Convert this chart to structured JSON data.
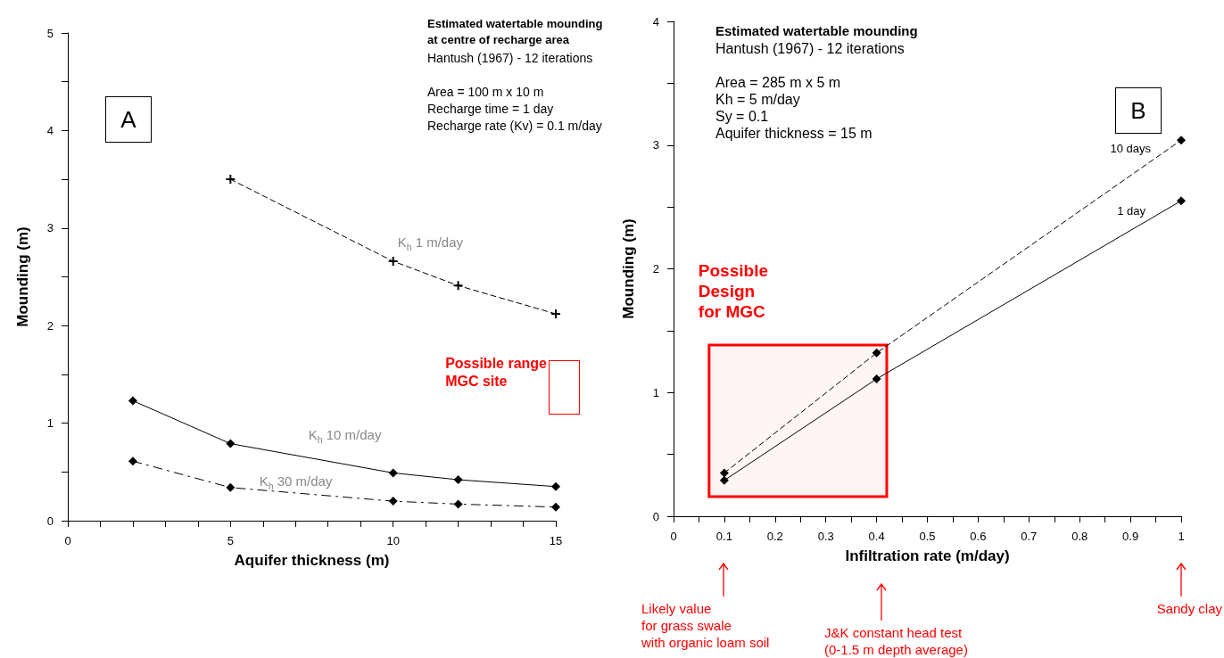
{
  "chart_data": [
    {
      "type": "line",
      "title": "Estimated watertable mounding\nat centre of recharge area",
      "subtitle": "Hantush (1967) - 12 iterations\n\nArea = 100 m x 10 m\nRecharge time = 1 day\nRecharge rate (Kv) = 0.1 m/day",
      "xlabel": "Aquifer thickness (m)",
      "ylabel": "Mounding (m)",
      "xlim": [
        0,
        15
      ],
      "xticks": [
        0,
        5,
        10,
        15
      ],
      "ylim": [
        0,
        5
      ],
      "yticks": [
        0,
        1,
        2,
        3,
        4,
        5
      ],
      "series": [
        {
          "name": "K$_{h}$ 1 m/day",
          "color": "#000000",
          "x": [
            5,
            10,
            12,
            15
          ],
          "values": [
            3.5,
            2.66,
            2.41,
            2.12
          ],
          "marker": "cross",
          "line_style": "dashed"
        },
        {
          "name": "K$_{h}$ 10 m/day",
          "color": "#000000",
          "x": [
            2,
            5,
            10,
            12,
            15
          ],
          "values": [
            1.23,
            0.79,
            0.49,
            0.42,
            0.35
          ],
          "marker": "diamond",
          "line_style": "solid"
        },
        {
          "name": "K$_{h}$ 30 m/day",
          "color": "#000000",
          "x": [
            2,
            5,
            10,
            12,
            15
          ],
          "values": [
            0.61,
            0.34,
            0.2,
            0.17,
            0.14
          ],
          "marker": "diamond",
          "line_style": "dashdot"
        }
      ],
      "annotations": [
        "A",
        "Possible range\nMGC site"
      ]
    },
    {
      "type": "line",
      "title": "Estimated watertable mounding",
      "subtitle": "Hantush (1967) - 12 iterations\n\nArea = 285 m x 5 m\nKh = 5 m/day\nSy = 0.1\nAquifer thickness = 15 m",
      "xlabel": "Infiltration rate (m/day)",
      "ylabel": "Mounding (m)",
      "xlim": [
        0,
        1
      ],
      "xticks": [
        0,
        0.1,
        0.2,
        0.3,
        0.4,
        0.5,
        0.6,
        0.7,
        0.8,
        0.9,
        1
      ],
      "ylim": [
        0,
        4
      ],
      "yticks": [
        0,
        1,
        2,
        3,
        4
      ],
      "series": [
        {
          "name": "10 days",
          "color": "#000000",
          "x": [
            0.1,
            0.4,
            1
          ],
          "values": [
            0.35,
            1.32,
            3.04
          ],
          "marker": "diamond",
          "line_style": "dashed"
        },
        {
          "name": "1 day",
          "color": "#000000",
          "x": [
            0.1,
            0.4,
            1
          ],
          "values": [
            0.29,
            1.11,
            2.55
          ],
          "marker": "diamond",
          "line_style": "solid"
        }
      ],
      "bands": [
        {
          "axis": "x",
          "from": 0.07,
          "to": 0.42,
          "label": "Possible\nDesign\nfor MGC",
          "color": "#ff0000"
        }
      ],
      "annotations": [
        "B",
        "Likely value\nfor grass swale\nwith organic loam soil",
        "J&K constant head test\n(0-1.5 m depth average)",
        "Sandy clay"
      ]
    }
  ]
}
